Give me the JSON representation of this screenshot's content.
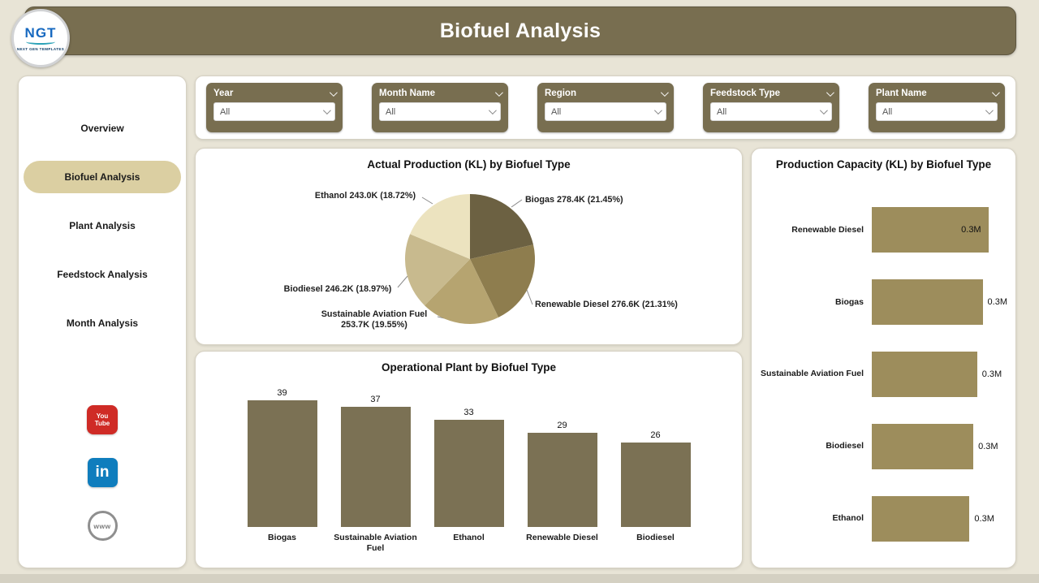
{
  "header": {
    "title": "Biofuel Analysis",
    "logo": {
      "acronym": "NGT",
      "tagline": "NEXT GEN TEMPLATES"
    }
  },
  "sidebar": {
    "items": [
      {
        "label": "Overview",
        "active": false
      },
      {
        "label": "Biofuel Analysis",
        "active": true
      },
      {
        "label": "Plant Analysis",
        "active": false
      },
      {
        "label": "Feedstock Analysis",
        "active": false
      },
      {
        "label": "Month Analysis",
        "active": false
      }
    ],
    "social": {
      "youtube_line1": "You",
      "youtube_line2": "Tube",
      "linkedin_text": "in",
      "website_text": "www"
    }
  },
  "filters": [
    {
      "label": "Year",
      "value": "All"
    },
    {
      "label": "Month Name",
      "value": "All"
    },
    {
      "label": "Region",
      "value": "All"
    },
    {
      "label": "Feedstock Type",
      "value": "All"
    },
    {
      "label": "Plant Name",
      "value": "All"
    }
  ],
  "colors": {
    "theme_olive": "#786e50",
    "page_background": "#e8e4d6",
    "active_nav_pill": "#dbcfa2",
    "column_bar": "#7b7154",
    "hbar_bar": "#9d8d5c"
  },
  "chart_data": [
    {
      "type": "pie",
      "title": "Actual Production (KL) by Biofuel Type",
      "legend_position": "none",
      "slices": [
        {
          "label": "Biogas",
          "value": 278400,
          "pct": "21.45%",
          "display": "Biogas 278.4K (21.45%)",
          "color": "#6c6142"
        },
        {
          "label": "Renewable Diesel",
          "value": 276600,
          "pct": "21.31%",
          "display": "Renewable Diesel 276.6K (21.31%)",
          "color": "#8e7d4e"
        },
        {
          "label": "Sustainable Aviation Fuel",
          "value": 253700,
          "pct": "19.55%",
          "display": "Sustainable Aviation Fuel 253.7K (19.55%)",
          "color": "#b6a470"
        },
        {
          "label": "Biodiesel",
          "value": 246200,
          "pct": "18.97%",
          "display": "Biodiesel 246.2K (18.97%)",
          "color": "#c8ba8e"
        },
        {
          "label": "Ethanol",
          "value": 243000,
          "pct": "18.72%",
          "display": "Ethanol 243.0K (18.72%)",
          "color": "#ece3bf"
        }
      ]
    },
    {
      "type": "bar",
      "title": "Operational Plant by Biofuel Type",
      "categories": [
        "Biogas",
        "Sustainable Aviation Fuel",
        "Ethanol",
        "Renewable Diesel",
        "Biodiesel"
      ],
      "values": [
        39,
        37,
        33,
        29,
        26
      ],
      "ylim": [
        0,
        40
      ],
      "grid": false,
      "bar_color": "#7b7154"
    },
    {
      "type": "bar",
      "orientation": "horizontal",
      "title": "Production Capacity (KL) by Biofuel Type",
      "categories": [
        "Renewable Diesel",
        "Biogas",
        "Sustainable Aviation Fuel",
        "Biodiesel",
        "Ethanol"
      ],
      "values": [
        0.31,
        0.3,
        0.28,
        0.27,
        0.26
      ],
      "value_labels": [
        "0.3M",
        "0.3M",
        "0.3M",
        "0.3M",
        "0.3M"
      ],
      "value_inside": [
        true,
        false,
        false,
        false,
        false
      ],
      "xlim": [
        0,
        0.35
      ],
      "bar_color": "#9d8d5c"
    }
  ]
}
